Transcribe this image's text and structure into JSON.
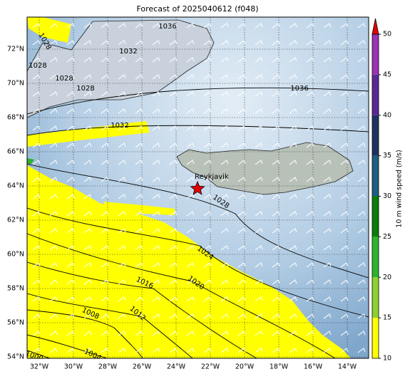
{
  "title": "Forecast of 2025040612 (f048)",
  "map": {
    "lon_labels": [
      "32°W",
      "30°W",
      "28°W",
      "26°W",
      "24°W",
      "22°W",
      "20°W",
      "18°W",
      "16°W",
      "14°W"
    ],
    "lat_labels": [
      "72°N",
      "70°N",
      "68°N",
      "66°N",
      "64°N",
      "62°N",
      "60°N",
      "58°N",
      "56°N",
      "54°N"
    ],
    "city": "Reykjavik",
    "contour_labels": [
      "1036",
      "1028",
      "1032",
      "1028",
      "1028",
      "1028",
      "1036",
      "1032",
      "1028",
      "1024",
      "1020",
      "1016",
      "1012",
      "1008",
      "1004",
      "1000"
    ]
  },
  "colorbar": {
    "label": "10 m wind speed (m/s)",
    "lim": [
      10,
      50
    ],
    "ticks": [
      10,
      15,
      20,
      25,
      30,
      35,
      40,
      45,
      50
    ],
    "colors": [
      "#ffff00",
      "#8fd132",
      "#2db42d",
      "#0a7d0a",
      "#1e5f82",
      "#1e3262",
      "#5a2896",
      "#9b32b4"
    ],
    "extend_color": "#e60000"
  }
}
